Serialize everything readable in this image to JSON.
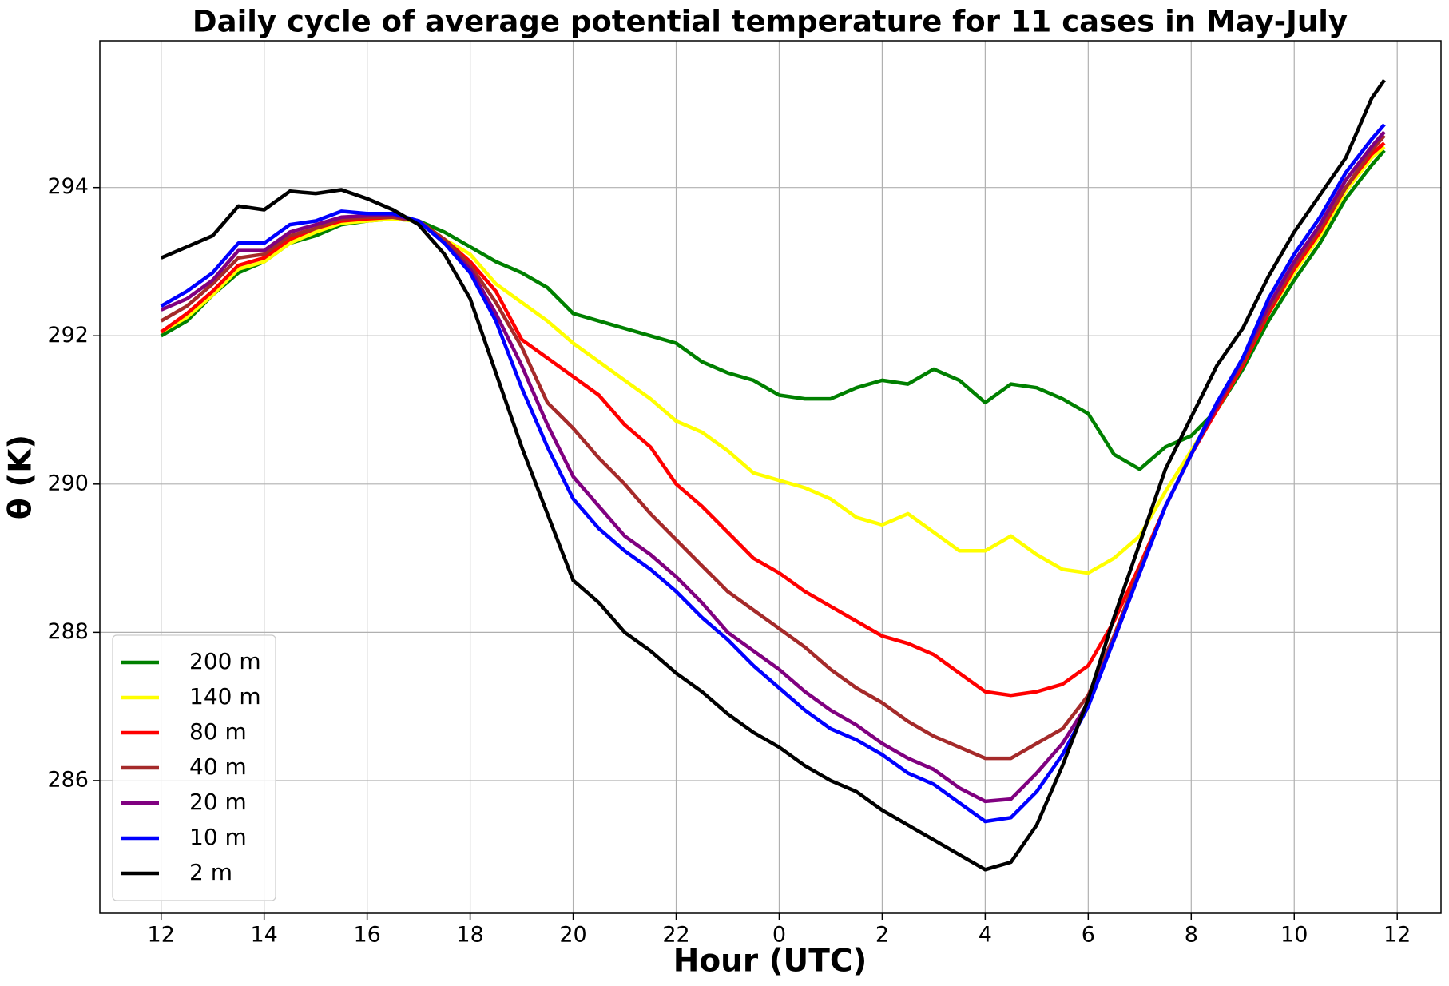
{
  "chart_data": {
    "type": "line",
    "title": "Daily cycle of average potential temperature for 11 cases in May-July",
    "xlabel": "Hour (UTC)",
    "ylabel": "θ (K)",
    "x": [
      12,
      12.5,
      13,
      13.5,
      14,
      14.5,
      15,
      15.5,
      16,
      16.5,
      17,
      17.5,
      18,
      18.5,
      19,
      19.5,
      20,
      20.5,
      21,
      21.5,
      22,
      22.5,
      23,
      23.5,
      24,
      24.5,
      25,
      25.5,
      26,
      26.5,
      27,
      27.5,
      28,
      28.5,
      29,
      29.5,
      30,
      30.5,
      31,
      31.5,
      32,
      32.5,
      33,
      33.5,
      34,
      34.5,
      35,
      35.5,
      35.75
    ],
    "series": [
      {
        "name": "200 m",
        "color": "#008000",
        "values": [
          292.0,
          292.2,
          292.55,
          292.85,
          293.0,
          293.25,
          293.35,
          293.5,
          293.55,
          293.58,
          293.55,
          293.4,
          293.2,
          293.0,
          292.85,
          292.65,
          292.3,
          292.2,
          292.1,
          292.0,
          291.9,
          291.65,
          291.5,
          291.4,
          291.2,
          291.15,
          291.15,
          291.3,
          291.4,
          291.35,
          291.55,
          291.4,
          291.1,
          291.35,
          291.3,
          291.15,
          290.95,
          290.4,
          290.2,
          290.5,
          290.65,
          291.0,
          291.55,
          292.2,
          292.75,
          293.25,
          293.85,
          294.3,
          294.5
        ]
      },
      {
        "name": "140 m",
        "color": "#ffff00",
        "values": [
          292.05,
          292.25,
          292.55,
          292.9,
          293.0,
          293.25,
          293.4,
          293.52,
          293.55,
          293.58,
          293.55,
          293.3,
          293.1,
          292.7,
          292.45,
          292.2,
          291.9,
          291.65,
          291.4,
          291.15,
          290.85,
          290.7,
          290.45,
          290.15,
          290.05,
          289.95,
          289.8,
          289.55,
          289.45,
          289.6,
          289.35,
          289.1,
          289.1,
          289.3,
          289.05,
          288.85,
          288.8,
          289.0,
          289.3,
          289.9,
          290.45,
          291.0,
          291.6,
          292.3,
          292.85,
          293.35,
          293.95,
          294.4,
          294.55
        ]
      },
      {
        "name": "80 m",
        "color": "#ff0000",
        "values": [
          292.05,
          292.3,
          292.6,
          292.95,
          293.05,
          293.3,
          293.45,
          293.55,
          293.58,
          293.6,
          293.55,
          293.3,
          293.0,
          292.6,
          291.95,
          291.7,
          291.45,
          291.2,
          290.8,
          290.5,
          290.0,
          289.7,
          289.35,
          289.0,
          288.8,
          288.55,
          288.35,
          288.15,
          287.95,
          287.85,
          287.7,
          287.45,
          287.2,
          287.15,
          287.2,
          287.3,
          287.55,
          288.15,
          288.9,
          289.7,
          290.4,
          291.0,
          291.6,
          292.3,
          292.9,
          293.4,
          294.0,
          294.45,
          294.6
        ]
      },
      {
        "name": "40 m",
        "color": "#a52a2a",
        "values": [
          292.2,
          292.4,
          292.7,
          293.05,
          293.1,
          293.35,
          293.45,
          293.58,
          293.6,
          293.6,
          293.55,
          293.3,
          292.95,
          292.45,
          291.85,
          291.1,
          290.75,
          290.35,
          290.0,
          289.6,
          289.25,
          288.9,
          288.55,
          288.3,
          288.05,
          287.8,
          287.5,
          287.25,
          287.05,
          286.8,
          286.6,
          286.45,
          286.3,
          286.3,
          286.5,
          286.7,
          287.15,
          287.95,
          288.85,
          289.7,
          290.4,
          291.05,
          291.65,
          292.35,
          292.95,
          293.45,
          294.0,
          294.5,
          294.7
        ]
      },
      {
        "name": "20 m",
        "color": "#800080",
        "values": [
          292.35,
          292.5,
          292.75,
          293.15,
          293.15,
          293.4,
          293.5,
          293.6,
          293.62,
          293.63,
          293.55,
          293.25,
          292.9,
          292.3,
          291.6,
          290.8,
          290.1,
          289.7,
          289.3,
          289.05,
          288.75,
          288.4,
          288.0,
          287.75,
          287.5,
          287.2,
          286.95,
          286.75,
          286.5,
          286.3,
          286.15,
          285.9,
          285.72,
          285.75,
          286.1,
          286.5,
          287.05,
          287.9,
          288.8,
          289.7,
          290.4,
          291.05,
          291.7,
          292.4,
          293.0,
          293.5,
          294.1,
          294.55,
          294.75
        ]
      },
      {
        "name": "10 m",
        "color": "#0000ff",
        "values": [
          292.4,
          292.6,
          292.85,
          293.25,
          293.25,
          293.5,
          293.55,
          293.68,
          293.65,
          293.65,
          293.55,
          293.25,
          292.85,
          292.2,
          291.3,
          290.5,
          289.8,
          289.4,
          289.1,
          288.85,
          288.55,
          288.2,
          287.9,
          287.55,
          287.25,
          286.95,
          286.7,
          286.55,
          286.35,
          286.1,
          285.95,
          285.7,
          285.45,
          285.5,
          285.85,
          286.35,
          287.0,
          287.9,
          288.8,
          289.7,
          290.4,
          291.1,
          291.7,
          292.5,
          293.1,
          293.6,
          294.2,
          294.65,
          294.85
        ]
      },
      {
        "name": "2 m",
        "color": "#000000",
        "values": [
          293.05,
          293.2,
          293.35,
          293.75,
          293.7,
          293.95,
          293.92,
          293.97,
          293.85,
          293.7,
          293.5,
          293.1,
          292.5,
          291.5,
          290.5,
          289.6,
          288.7,
          288.4,
          288.0,
          287.75,
          287.45,
          287.2,
          286.9,
          286.65,
          286.45,
          286.2,
          286.0,
          285.85,
          285.6,
          285.4,
          285.2,
          285.0,
          284.8,
          284.9,
          285.4,
          286.2,
          287.1,
          288.2,
          289.2,
          290.2,
          290.9,
          291.6,
          292.1,
          292.8,
          293.4,
          293.9,
          294.4,
          295.2,
          295.45
        ]
      }
    ],
    "xlim": [
      10.81,
      36.85
    ],
    "ylim": [
      284.21,
      295.98
    ],
    "xticks": [
      12,
      14,
      16,
      18,
      20,
      22,
      {
        "value": 24,
        "label": "0"
      },
      {
        "value": 26,
        "label": "2"
      },
      {
        "value": 28,
        "label": "4"
      },
      {
        "value": 30,
        "label": "6"
      },
      {
        "value": 32,
        "label": "8"
      },
      {
        "value": 34,
        "label": "10"
      },
      {
        "value": 36,
        "label": "12"
      }
    ],
    "yticks": [
      286,
      288,
      290,
      292,
      294
    ],
    "grid": true,
    "legend": "lower left"
  }
}
